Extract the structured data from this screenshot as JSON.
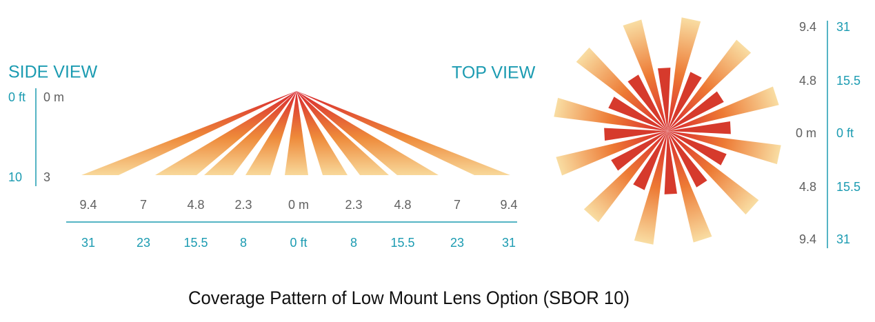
{
  "side_view": {
    "title": "SIDE VIEW",
    "depth_ft": [
      "0 ft",
      "10"
    ],
    "depth_m": [
      "0 m",
      "3"
    ],
    "width_m": [
      "9.4",
      "7",
      "4.8",
      "2.3",
      "0 m",
      "2.3",
      "4.8",
      "7",
      "9.4"
    ],
    "width_ft": [
      "31",
      "23",
      "15.5",
      "8",
      "0 ft",
      "8",
      "15.5",
      "23",
      "31"
    ]
  },
  "top_view": {
    "title": "TOP VIEW",
    "scale_m": [
      "9.4",
      "4.8",
      "0 m",
      "4.8",
      "9.4"
    ],
    "scale_ft": [
      "31",
      "15.5",
      "0 ft",
      "15.5",
      "31"
    ]
  },
  "caption": "Coverage Pattern of Low Mount Lens Option (SBOR 10)"
}
